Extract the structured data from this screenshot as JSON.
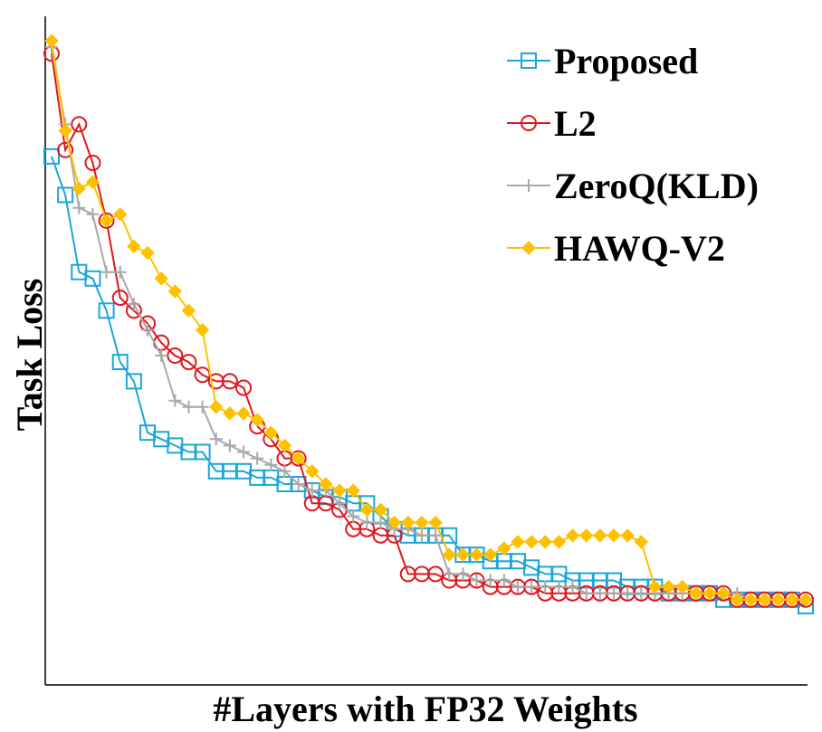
{
  "chart_data": {
    "type": "line",
    "xlabel": "#Layers with FP32 Weights",
    "ylabel": "Task Loss",
    "xlim": [
      0,
      55
    ],
    "ylim": [
      0,
      100
    ],
    "grid": false,
    "legend_placement": "top-right",
    "series": [
      {
        "name": "Proposed",
        "color": "#1aa6d9",
        "marker": "square",
        "x": [
          0,
          1,
          2,
          3,
          4,
          5,
          6,
          7,
          8,
          9,
          10,
          11,
          12,
          13,
          14,
          15,
          16,
          17,
          18,
          19,
          20,
          21,
          22,
          23,
          24,
          25,
          26,
          27,
          28,
          29,
          30,
          31,
          32,
          33,
          34,
          35,
          36,
          37,
          38,
          39,
          40,
          41,
          42,
          43,
          44,
          45,
          46,
          47,
          48,
          49,
          50,
          51,
          52,
          53,
          54,
          55
        ],
        "values": [
          81,
          75,
          63,
          62,
          57,
          49,
          46,
          38,
          37,
          36,
          35,
          35,
          32,
          32,
          32,
          31,
          31,
          30,
          30,
          29,
          28,
          28,
          27,
          27,
          25,
          23,
          22,
          22,
          22,
          22,
          19,
          19,
          18,
          18,
          18,
          17,
          16,
          16,
          15,
          15,
          15,
          15,
          14,
          14,
          14,
          13,
          13,
          13,
          13,
          12,
          12,
          12,
          12,
          12,
          12,
          11
        ]
      },
      {
        "name": "L2",
        "color": "#e0161e",
        "marker": "circle",
        "x": [
          0,
          1,
          2,
          3,
          4,
          5,
          6,
          7,
          8,
          9,
          10,
          11,
          12,
          13,
          14,
          15,
          16,
          17,
          18,
          19,
          20,
          21,
          22,
          23,
          24,
          25,
          26,
          27,
          28,
          29,
          30,
          31,
          32,
          33,
          34,
          35,
          36,
          37,
          38,
          39,
          40,
          41,
          42,
          43,
          44,
          45,
          46,
          47,
          48,
          49,
          50,
          51,
          52,
          53,
          54,
          55
        ],
        "values": [
          97,
          82,
          86,
          80,
          71,
          59,
          57,
          55,
          52,
          50,
          49,
          47,
          46,
          46,
          45,
          39,
          37,
          34,
          34,
          27,
          27,
          26,
          23,
          23,
          22,
          22,
          16,
          16,
          16,
          15,
          15,
          15,
          14,
          14,
          14,
          14,
          13,
          13,
          13,
          13,
          13,
          13,
          13,
          13,
          13,
          13,
          13,
          13,
          13,
          13,
          12,
          12,
          12,
          12,
          12,
          12
        ]
      },
      {
        "name": "ZeroQ(KLD)",
        "color": "#a9a9a9",
        "marker": "plus",
        "x": [
          0,
          1,
          2,
          3,
          4,
          5,
          6,
          7,
          8,
          9,
          10,
          11,
          12,
          13,
          14,
          15,
          16,
          17,
          18,
          19,
          20,
          21,
          22,
          23,
          24,
          25,
          26,
          27,
          28,
          29,
          30,
          31,
          32,
          33,
          34,
          35,
          36,
          37,
          38,
          39,
          40,
          41,
          42,
          43,
          44,
          45,
          46,
          47,
          48,
          49,
          50,
          51,
          52,
          53,
          54,
          55
        ],
        "values": [
          98,
          86,
          73,
          72,
          63,
          63,
          58,
          54,
          50,
          43,
          42,
          42,
          37,
          36,
          35,
          34,
          33,
          32,
          30,
          29,
          29,
          27,
          25,
          24,
          24,
          23,
          23,
          22,
          22,
          16,
          16,
          15,
          15,
          15,
          14,
          14,
          14,
          14,
          14,
          13,
          13,
          13,
          13,
          13,
          13,
          13,
          13,
          13,
          13,
          13,
          13,
          12,
          12,
          12,
          12,
          12
        ]
      },
      {
        "name": "HAWQ-V2",
        "color": "#ffc000",
        "marker": "diamond",
        "x": [
          0,
          1,
          2,
          3,
          4,
          5,
          6,
          7,
          8,
          9,
          10,
          11,
          12,
          13,
          14,
          15,
          16,
          17,
          18,
          19,
          20,
          21,
          22,
          23,
          24,
          25,
          26,
          27,
          28,
          29,
          30,
          31,
          32,
          33,
          34,
          35,
          36,
          37,
          38,
          39,
          40,
          41,
          42,
          43,
          44,
          45,
          46,
          47,
          48,
          49,
          50,
          51,
          52,
          53,
          54,
          55
        ],
        "values": [
          99,
          85,
          76,
          77,
          71,
          72,
          67,
          66,
          62,
          60,
          57,
          54,
          42,
          41,
          41,
          40,
          38,
          36,
          34,
          32,
          30,
          29,
          29,
          26,
          26,
          24,
          24,
          24,
          24,
          19,
          19,
          19,
          19,
          20,
          21,
          21,
          21,
          21,
          22,
          22,
          22,
          22,
          22,
          21,
          14,
          14,
          14,
          13,
          13,
          13,
          12,
          12,
          12,
          12,
          12,
          12
        ]
      }
    ]
  }
}
